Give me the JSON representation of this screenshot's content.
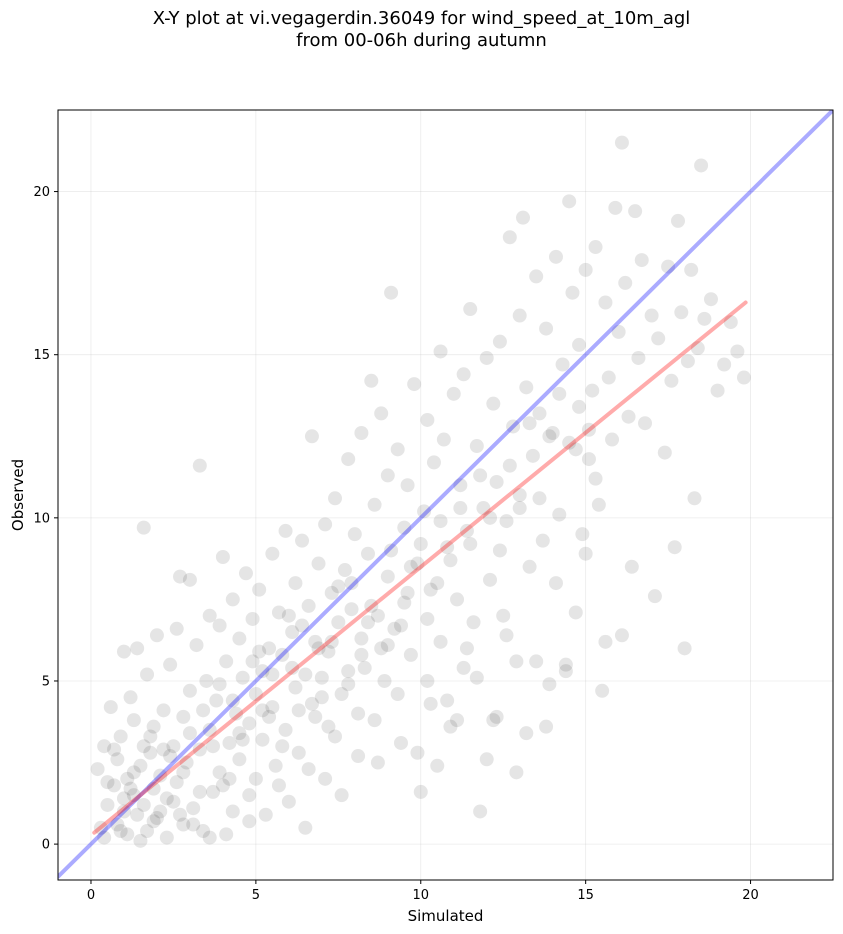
{
  "chart_data": {
    "type": "scatter",
    "title": "X-Y plot at vi.vegagerdin.36049 for wind_speed_at_10m_agl",
    "subtitle": "from 00-06h during autumn",
    "xlabel": "Simulated",
    "ylabel": "Observed",
    "xlim": [
      -1.0,
      22.5
    ],
    "ylim": [
      -1.1,
      22.5
    ],
    "xticks": [
      0,
      5,
      10,
      15,
      20
    ],
    "yticks": [
      0,
      5,
      10,
      15,
      20
    ],
    "grid": true,
    "point_color": "#000000",
    "point_opacity": 0.1,
    "reference_line": {
      "color": "#0000ff",
      "x": [
        -1.0,
        22.5
      ],
      "y": [
        -1.0,
        22.5
      ]
    },
    "regression_line": {
      "color": "#ff0000",
      "x": [
        0.1,
        19.85
      ],
      "y": [
        0.35,
        16.6
      ]
    },
    "points": [
      [
        0.2,
        2.3
      ],
      [
        0.3,
        0.5
      ],
      [
        0.4,
        0.2
      ],
      [
        0.4,
        3.0
      ],
      [
        0.5,
        1.2
      ],
      [
        0.6,
        4.2
      ],
      [
        0.7,
        1.8
      ],
      [
        0.8,
        0.6
      ],
      [
        0.8,
        2.6
      ],
      [
        0.9,
        3.3
      ],
      [
        1.0,
        5.9
      ],
      [
        1.0,
        1.0
      ],
      [
        1.1,
        0.3
      ],
      [
        1.1,
        2.0
      ],
      [
        1.2,
        4.5
      ],
      [
        1.3,
        1.5
      ],
      [
        1.3,
        3.8
      ],
      [
        1.4,
        0.9
      ],
      [
        1.4,
        6.0
      ],
      [
        1.5,
        2.4
      ],
      [
        1.6,
        9.7
      ],
      [
        1.6,
        1.2
      ],
      [
        1.7,
        0.4
      ],
      [
        1.7,
        5.2
      ],
      [
        1.8,
        2.8
      ],
      [
        1.9,
        1.7
      ],
      [
        1.9,
        3.6
      ],
      [
        2.0,
        0.8
      ],
      [
        2.0,
        6.4
      ],
      [
        2.1,
        2.1
      ],
      [
        2.2,
        4.1
      ],
      [
        2.3,
        1.4
      ],
      [
        2.3,
        0.2
      ],
      [
        2.4,
        5.5
      ],
      [
        2.5,
        3.0
      ],
      [
        2.6,
        1.9
      ],
      [
        2.6,
        6.6
      ],
      [
        2.7,
        8.2
      ],
      [
        2.8,
        0.6
      ],
      [
        2.8,
        3.9
      ],
      [
        2.9,
        2.5
      ],
      [
        3.0,
        4.7
      ],
      [
        3.0,
        8.1
      ],
      [
        3.1,
        1.1
      ],
      [
        3.2,
        6.1
      ],
      [
        3.3,
        11.6
      ],
      [
        3.3,
        2.9
      ],
      [
        3.4,
        0.4
      ],
      [
        3.5,
        5.0
      ],
      [
        3.6,
        3.5
      ],
      [
        3.6,
        7.0
      ],
      [
        3.7,
        1.6
      ],
      [
        3.8,
        4.4
      ],
      [
        3.9,
        6.7
      ],
      [
        3.9,
        2.2
      ],
      [
        4.0,
        8.8
      ],
      [
        4.1,
        0.3
      ],
      [
        4.1,
        5.6
      ],
      [
        4.2,
        3.1
      ],
      [
        4.3,
        7.5
      ],
      [
        4.3,
        1.0
      ],
      [
        4.4,
        4.0
      ],
      [
        4.5,
        6.3
      ],
      [
        4.5,
        2.6
      ],
      [
        4.6,
        5.1
      ],
      [
        4.7,
        8.3
      ],
      [
        4.8,
        3.7
      ],
      [
        4.8,
        0.7
      ],
      [
        4.9,
        6.9
      ],
      [
        5.0,
        4.6
      ],
      [
        5.0,
        2.0
      ],
      [
        5.1,
        7.8
      ],
      [
        5.2,
        5.3
      ],
      [
        5.2,
        3.2
      ],
      [
        5.3,
        0.9
      ],
      [
        5.4,
        6.0
      ],
      [
        5.5,
        4.2
      ],
      [
        5.5,
        8.9
      ],
      [
        5.6,
        2.4
      ],
      [
        5.7,
        7.1
      ],
      [
        5.8,
        5.8
      ],
      [
        5.9,
        3.5
      ],
      [
        5.9,
        9.6
      ],
      [
        6.0,
        1.3
      ],
      [
        6.1,
        6.5
      ],
      [
        6.2,
        4.8
      ],
      [
        6.2,
        8.0
      ],
      [
        6.3,
        2.8
      ],
      [
        6.4,
        9.3
      ],
      [
        6.5,
        5.2
      ],
      [
        6.5,
        0.5
      ],
      [
        6.6,
        7.3
      ],
      [
        6.7,
        12.5
      ],
      [
        6.8,
        3.9
      ],
      [
        6.8,
        6.2
      ],
      [
        6.9,
        8.6
      ],
      [
        7.0,
        4.5
      ],
      [
        7.1,
        2.0
      ],
      [
        7.1,
        9.8
      ],
      [
        7.2,
        5.9
      ],
      [
        7.3,
        7.7
      ],
      [
        7.4,
        3.3
      ],
      [
        7.4,
        10.6
      ],
      [
        7.5,
        6.8
      ],
      [
        7.6,
        1.5
      ],
      [
        7.7,
        8.4
      ],
      [
        7.8,
        11.8
      ],
      [
        7.8,
        4.9
      ],
      [
        7.9,
        7.2
      ],
      [
        8.0,
        9.5
      ],
      [
        8.1,
        2.7
      ],
      [
        8.2,
        6.3
      ],
      [
        8.2,
        12.6
      ],
      [
        8.3,
        5.4
      ],
      [
        8.4,
        8.9
      ],
      [
        8.5,
        14.2
      ],
      [
        8.6,
        3.8
      ],
      [
        8.6,
        10.4
      ],
      [
        8.7,
        7.0
      ],
      [
        8.8,
        13.2
      ],
      [
        8.9,
        5.0
      ],
      [
        9.0,
        11.3
      ],
      [
        9.0,
        8.2
      ],
      [
        9.1,
        16.9
      ],
      [
        9.2,
        6.6
      ],
      [
        9.3,
        12.1
      ],
      [
        9.4,
        3.1
      ],
      [
        9.5,
        9.7
      ],
      [
        9.5,
        7.4
      ],
      [
        9.6,
        11.0
      ],
      [
        9.7,
        5.8
      ],
      [
        9.8,
        14.1
      ],
      [
        9.9,
        8.6
      ],
      [
        10.0,
        1.6
      ],
      [
        10.1,
        10.2
      ],
      [
        10.2,
        6.9
      ],
      [
        10.2,
        13.0
      ],
      [
        10.3,
        4.3
      ],
      [
        10.4,
        11.7
      ],
      [
        10.5,
        8.0
      ],
      [
        10.6,
        15.1
      ],
      [
        10.6,
        6.2
      ],
      [
        10.7,
        12.4
      ],
      [
        10.8,
        9.1
      ],
      [
        10.9,
        3.6
      ],
      [
        11.0,
        13.8
      ],
      [
        11.1,
        7.5
      ],
      [
        11.2,
        11.0
      ],
      [
        11.3,
        5.4
      ],
      [
        11.3,
        14.4
      ],
      [
        11.4,
        9.6
      ],
      [
        11.5,
        16.4
      ],
      [
        11.6,
        6.8
      ],
      [
        11.7,
        12.2
      ],
      [
        11.8,
        1.0
      ],
      [
        11.9,
        10.3
      ],
      [
        12.0,
        14.9
      ],
      [
        12.1,
        8.1
      ],
      [
        12.2,
        3.8
      ],
      [
        12.2,
        13.5
      ],
      [
        12.3,
        11.1
      ],
      [
        12.4,
        15.4
      ],
      [
        12.5,
        7.0
      ],
      [
        12.6,
        9.9
      ],
      [
        12.7,
        18.6
      ],
      [
        12.8,
        12.8
      ],
      [
        12.9,
        5.6
      ],
      [
        13.0,
        16.2
      ],
      [
        13.0,
        10.7
      ],
      [
        13.1,
        19.2
      ],
      [
        13.2,
        14.0
      ],
      [
        13.3,
        8.5
      ],
      [
        13.4,
        11.9
      ],
      [
        13.5,
        17.4
      ],
      [
        13.6,
        13.2
      ],
      [
        13.7,
        9.3
      ],
      [
        13.8,
        15.8
      ],
      [
        13.9,
        4.9
      ],
      [
        14.0,
        12.6
      ],
      [
        14.1,
        18.0
      ],
      [
        14.2,
        10.1
      ],
      [
        14.3,
        14.7
      ],
      [
        14.4,
        5.5
      ],
      [
        14.5,
        19.7
      ],
      [
        14.6,
        16.9
      ],
      [
        14.7,
        12.1
      ],
      [
        14.8,
        15.3
      ],
      [
        14.9,
        9.5
      ],
      [
        15.0,
        17.6
      ],
      [
        15.1,
        11.8
      ],
      [
        15.2,
        13.9
      ],
      [
        15.3,
        18.3
      ],
      [
        15.4,
        10.4
      ],
      [
        15.5,
        4.7
      ],
      [
        15.6,
        16.6
      ],
      [
        15.7,
        14.3
      ],
      [
        15.8,
        12.4
      ],
      [
        15.9,
        19.5
      ],
      [
        16.0,
        15.7
      ],
      [
        16.1,
        6.4
      ],
      [
        16.2,
        17.2
      ],
      [
        16.3,
        13.1
      ],
      [
        16.4,
        8.5
      ],
      [
        16.5,
        19.4
      ],
      [
        16.6,
        14.9
      ],
      [
        16.7,
        17.9
      ],
      [
        16.8,
        12.9
      ],
      [
        17.0,
        16.2
      ],
      [
        17.1,
        7.6
      ],
      [
        17.2,
        15.5
      ],
      [
        17.4,
        12.0
      ],
      [
        17.5,
        17.7
      ],
      [
        17.6,
        14.2
      ],
      [
        17.7,
        9.1
      ],
      [
        17.8,
        19.1
      ],
      [
        17.9,
        16.3
      ],
      [
        18.0,
        6.0
      ],
      [
        18.1,
        14.8
      ],
      [
        18.2,
        17.6
      ],
      [
        18.3,
        10.6
      ],
      [
        18.4,
        15.2
      ],
      [
        18.5,
        20.8
      ],
      [
        18.6,
        16.1
      ],
      [
        18.8,
        16.7
      ],
      [
        19.0,
        13.9
      ],
      [
        19.2,
        14.7
      ],
      [
        19.4,
        16.0
      ],
      [
        19.6,
        15.1
      ],
      [
        19.8,
        14.3
      ],
      [
        16.1,
        21.5
      ],
      [
        0.9,
        0.4
      ],
      [
        1.2,
        1.7
      ],
      [
        1.5,
        0.1
      ],
      [
        1.8,
        3.3
      ],
      [
        2.1,
        1.0
      ],
      [
        2.4,
        2.7
      ],
      [
        2.7,
        0.9
      ],
      [
        3.0,
        3.4
      ],
      [
        3.3,
        1.6
      ],
      [
        3.6,
        0.2
      ],
      [
        3.9,
        4.9
      ],
      [
        4.2,
        2.0
      ],
      [
        4.5,
        3.4
      ],
      [
        4.8,
        1.5
      ],
      [
        5.1,
        5.9
      ],
      [
        5.4,
        3.9
      ],
      [
        5.7,
        1.8
      ],
      [
        6.0,
        7.0
      ],
      [
        6.3,
        4.1
      ],
      [
        6.6,
        2.3
      ],
      [
        6.9,
        6.0
      ],
      [
        7.2,
        3.6
      ],
      [
        7.5,
        7.9
      ],
      [
        7.8,
        5.3
      ],
      [
        8.1,
        4.0
      ],
      [
        8.4,
        6.8
      ],
      [
        8.7,
        2.5
      ],
      [
        9.0,
        6.1
      ],
      [
        9.3,
        4.6
      ],
      [
        9.6,
        7.7
      ],
      [
        9.9,
        2.8
      ],
      [
        10.2,
        5.0
      ],
      [
        10.5,
        2.4
      ],
      [
        10.8,
        4.4
      ],
      [
        11.1,
        3.8
      ],
      [
        11.4,
        6.0
      ],
      [
        11.7,
        5.1
      ],
      [
        12.0,
        2.6
      ],
      [
        12.3,
        3.9
      ],
      [
        12.6,
        6.4
      ],
      [
        12.9,
        2.2
      ],
      [
        13.2,
        3.4
      ],
      [
        13.5,
        5.6
      ],
      [
        13.8,
        3.6
      ],
      [
        14.1,
        8.0
      ],
      [
        14.4,
        5.3
      ],
      [
        14.7,
        7.1
      ],
      [
        15.0,
        8.9
      ],
      [
        15.3,
        11.2
      ],
      [
        15.6,
        6.2
      ],
      [
        0.5,
        1.9
      ],
      [
        0.7,
        2.9
      ],
      [
        1.0,
        1.4
      ],
      [
        1.3,
        2.2
      ],
      [
        1.6,
        3.0
      ],
      [
        1.9,
        0.7
      ],
      [
        2.2,
        2.9
      ],
      [
        2.5,
        1.3
      ],
      [
        2.8,
        2.2
      ],
      [
        3.1,
        0.6
      ],
      [
        3.4,
        4.1
      ],
      [
        3.7,
        3.0
      ],
      [
        4.0,
        1.8
      ],
      [
        4.3,
        4.4
      ],
      [
        4.6,
        3.2
      ],
      [
        4.9,
        5.6
      ],
      [
        5.2,
        4.1
      ],
      [
        5.5,
        5.2
      ],
      [
        5.8,
        3.0
      ],
      [
        6.1,
        5.4
      ],
      [
        6.4,
        6.7
      ],
      [
        6.7,
        4.3
      ],
      [
        7.0,
        5.1
      ],
      [
        7.3,
        6.2
      ],
      [
        7.6,
        4.6
      ],
      [
        7.9,
        8.0
      ],
      [
        8.2,
        5.8
      ],
      [
        8.5,
        7.3
      ],
      [
        8.8,
        6.0
      ],
      [
        9.1,
        9.0
      ],
      [
        9.4,
        6.7
      ],
      [
        9.7,
        8.5
      ],
      [
        10.0,
        9.2
      ],
      [
        10.3,
        7.8
      ],
      [
        10.6,
        9.9
      ],
      [
        10.9,
        8.7
      ],
      [
        11.2,
        10.3
      ],
      [
        11.5,
        9.2
      ],
      [
        11.8,
        11.3
      ],
      [
        12.1,
        10.0
      ],
      [
        12.4,
        9.0
      ],
      [
        12.7,
        11.6
      ],
      [
        13.0,
        10.3
      ],
      [
        13.3,
        12.9
      ],
      [
        13.6,
        10.6
      ],
      [
        13.9,
        12.5
      ],
      [
        14.2,
        13.8
      ],
      [
        14.5,
        12.3
      ],
      [
        14.8,
        13.4
      ],
      [
        15.1,
        12.7
      ]
    ]
  }
}
